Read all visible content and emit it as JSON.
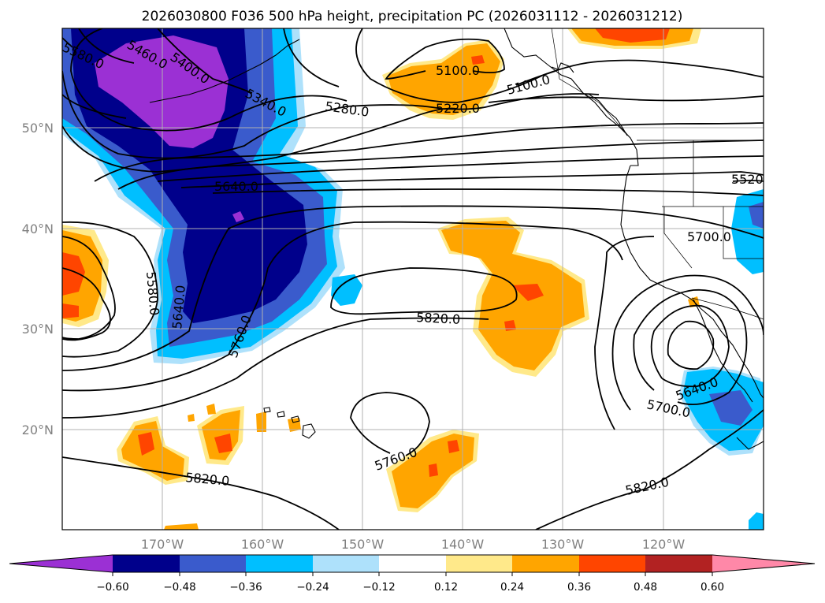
{
  "title": "2026030800 F036 500 hPa height, precipitation PC (2026031112 - 2026031212)",
  "map": {
    "lon_range": [
      -180,
      -110
    ],
    "lat_range": [
      10,
      60
    ],
    "lat_ticks": [
      "50°N",
      "40°N",
      "30°N",
      "20°N"
    ],
    "lon_ticks": [
      "170°W",
      "160°W",
      "150°W",
      "140°W",
      "130°W",
      "120°W"
    ]
  },
  "contour_labels": [
    "5580.0",
    "5460.0",
    "5400.0",
    "5340.0",
    "5280.0",
    "5220.0",
    "5100.0",
    "5100.0",
    "5640.0",
    "5520",
    "5700.0",
    "5580.0",
    "5640.0",
    "5760.0",
    "5820.0",
    "5640.0",
    "5700.0",
    "5760.0",
    "5820.0",
    "5820.0"
  ],
  "colorbar": {
    "colors": [
      "#9b30d4",
      "#00008b",
      "#3a5bcc",
      "#00bfff",
      "#aee1fb",
      "#ffffff",
      "#ffe98a",
      "#ffa500",
      "#ff4500",
      "#b22222",
      "#ff88a8"
    ],
    "ticks": [
      "−0.60",
      "−0.48",
      "−0.36",
      "−0.24",
      "−0.12",
      "0.12",
      "0.24",
      "0.36",
      "0.48",
      "0.60"
    ]
  }
}
